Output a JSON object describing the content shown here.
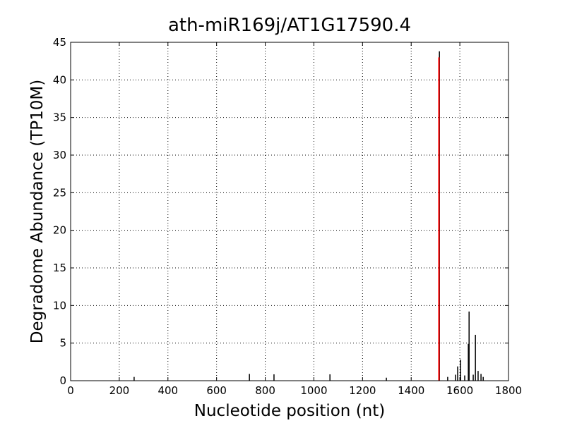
{
  "chart_data": {
    "type": "stem",
    "title": "ath-miR169j/AT1G17590.4",
    "x_label": "Nucleotide position (nt)",
    "y_label": "Degradome Abundance (TP10M)",
    "series": [
      {
        "color": "#000000",
        "x": [
          261,
          735,
          836,
          1066,
          1298,
          1516,
          1550,
          1582,
          1591,
          1603,
          1620,
          1635,
          1638,
          1655,
          1664,
          1675,
          1687,
          1696
        ],
        "values": [
          0.5,
          0.9,
          0.85,
          0.85,
          0.4,
          43.8,
          0.5,
          0.8,
          1.9,
          2.8,
          0.7,
          4.9,
          9.2,
          0.8,
          6.1,
          1.3,
          0.9,
          0.5
        ]
      },
      {
        "color": "#ff0000",
        "x": [
          1514
        ],
        "values": [
          43
        ]
      }
    ],
    "xlim": [
      0,
      1800
    ],
    "xticks": [
      0,
      200,
      400,
      600,
      800,
      1000,
      1200,
      1400,
      1600,
      1800
    ],
    "ylim": [
      0,
      45
    ],
    "yticks": [
      0,
      5,
      10,
      15,
      20,
      25,
      30,
      35,
      40,
      45
    ],
    "grid": true
  }
}
